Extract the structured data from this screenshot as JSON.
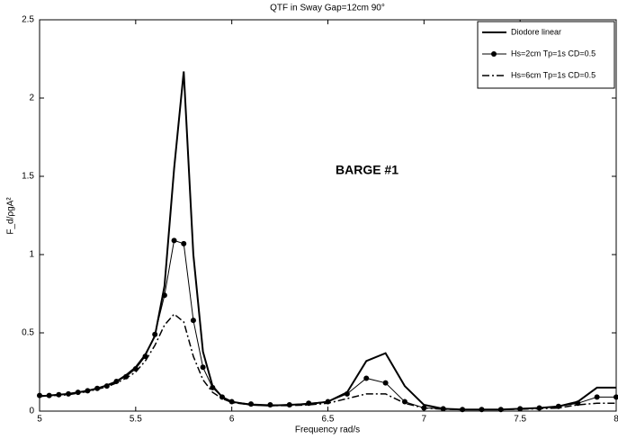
{
  "chart_data": {
    "type": "line",
    "title": "QTF in Sway Gap=12cm  90°",
    "x_label": "Frequency rad/s",
    "y_label": "F_d/ρgA²",
    "annotation": "BARGE #1",
    "legend": "upper right",
    "x": [
      5,
      5.05,
      5.1,
      5.15,
      5.2,
      5.25,
      5.3,
      5.35,
      5.4,
      5.45,
      5.5,
      5.55,
      5.6,
      5.65,
      5.7,
      5.75,
      5.8,
      5.85,
      5.9,
      5.95,
      6.0,
      6.1,
      6.2,
      6.3,
      6.4,
      6.5,
      6.6,
      6.7,
      6.8,
      6.9,
      7.0,
      7.1,
      7.2,
      7.3,
      7.4,
      7.5,
      7.6,
      7.7,
      7.8,
      7.9,
      8.0
    ],
    "series": [
      {
        "name": "Diodore linear",
        "color": "#000000",
        "linestyle": "solid",
        "width": 2,
        "marker": false,
        "values": [
          0.095,
          0.1,
          0.105,
          0.11,
          0.12,
          0.13,
          0.145,
          0.165,
          0.19,
          0.23,
          0.28,
          0.36,
          0.48,
          0.8,
          1.55,
          2.17,
          1.0,
          0.38,
          0.16,
          0.09,
          0.06,
          0.04,
          0.035,
          0.04,
          0.045,
          0.06,
          0.12,
          0.32,
          0.37,
          0.16,
          0.04,
          0.015,
          0.01,
          0.01,
          0.01,
          0.015,
          0.02,
          0.03,
          0.06,
          0.15,
          0.15
        ]
      },
      {
        "name": "Hs=2cm Tp=1s CD=0.5",
        "color": "#000000",
        "linestyle": "solid",
        "width": 1,
        "marker": true,
        "values": [
          0.1,
          0.1,
          0.105,
          0.11,
          0.12,
          0.13,
          0.145,
          0.16,
          0.19,
          0.22,
          0.27,
          0.35,
          0.49,
          0.74,
          1.09,
          1.07,
          0.58,
          0.28,
          0.15,
          0.09,
          0.06,
          0.045,
          0.04,
          0.04,
          0.05,
          0.06,
          0.11,
          0.21,
          0.18,
          0.06,
          0.02,
          0.015,
          0.01,
          0.01,
          0.01,
          0.015,
          0.02,
          0.03,
          0.05,
          0.09,
          0.09
        ]
      },
      {
        "name": "Hs=6cm Tp=1s CD=0.5",
        "color": "#000000",
        "linestyle": "dashdot",
        "width": 1.5,
        "marker": false,
        "values": [
          0.095,
          0.1,
          0.1,
          0.105,
          0.115,
          0.125,
          0.14,
          0.155,
          0.18,
          0.21,
          0.25,
          0.32,
          0.42,
          0.55,
          0.62,
          0.57,
          0.35,
          0.2,
          0.12,
          0.08,
          0.055,
          0.04,
          0.035,
          0.035,
          0.04,
          0.05,
          0.08,
          0.11,
          0.11,
          0.05,
          0.02,
          0.012,
          0.01,
          0.01,
          0.01,
          0.012,
          0.015,
          0.02,
          0.04,
          0.05,
          0.05
        ]
      }
    ],
    "xlim": [
      5,
      8
    ],
    "ylim": [
      0,
      2.5
    ],
    "xticks": [
      5,
      5.5,
      6,
      6.5,
      7,
      7.5,
      8
    ],
    "yticks": [
      0,
      0.5,
      1,
      1.5,
      2,
      2.5
    ],
    "grid": false
  }
}
